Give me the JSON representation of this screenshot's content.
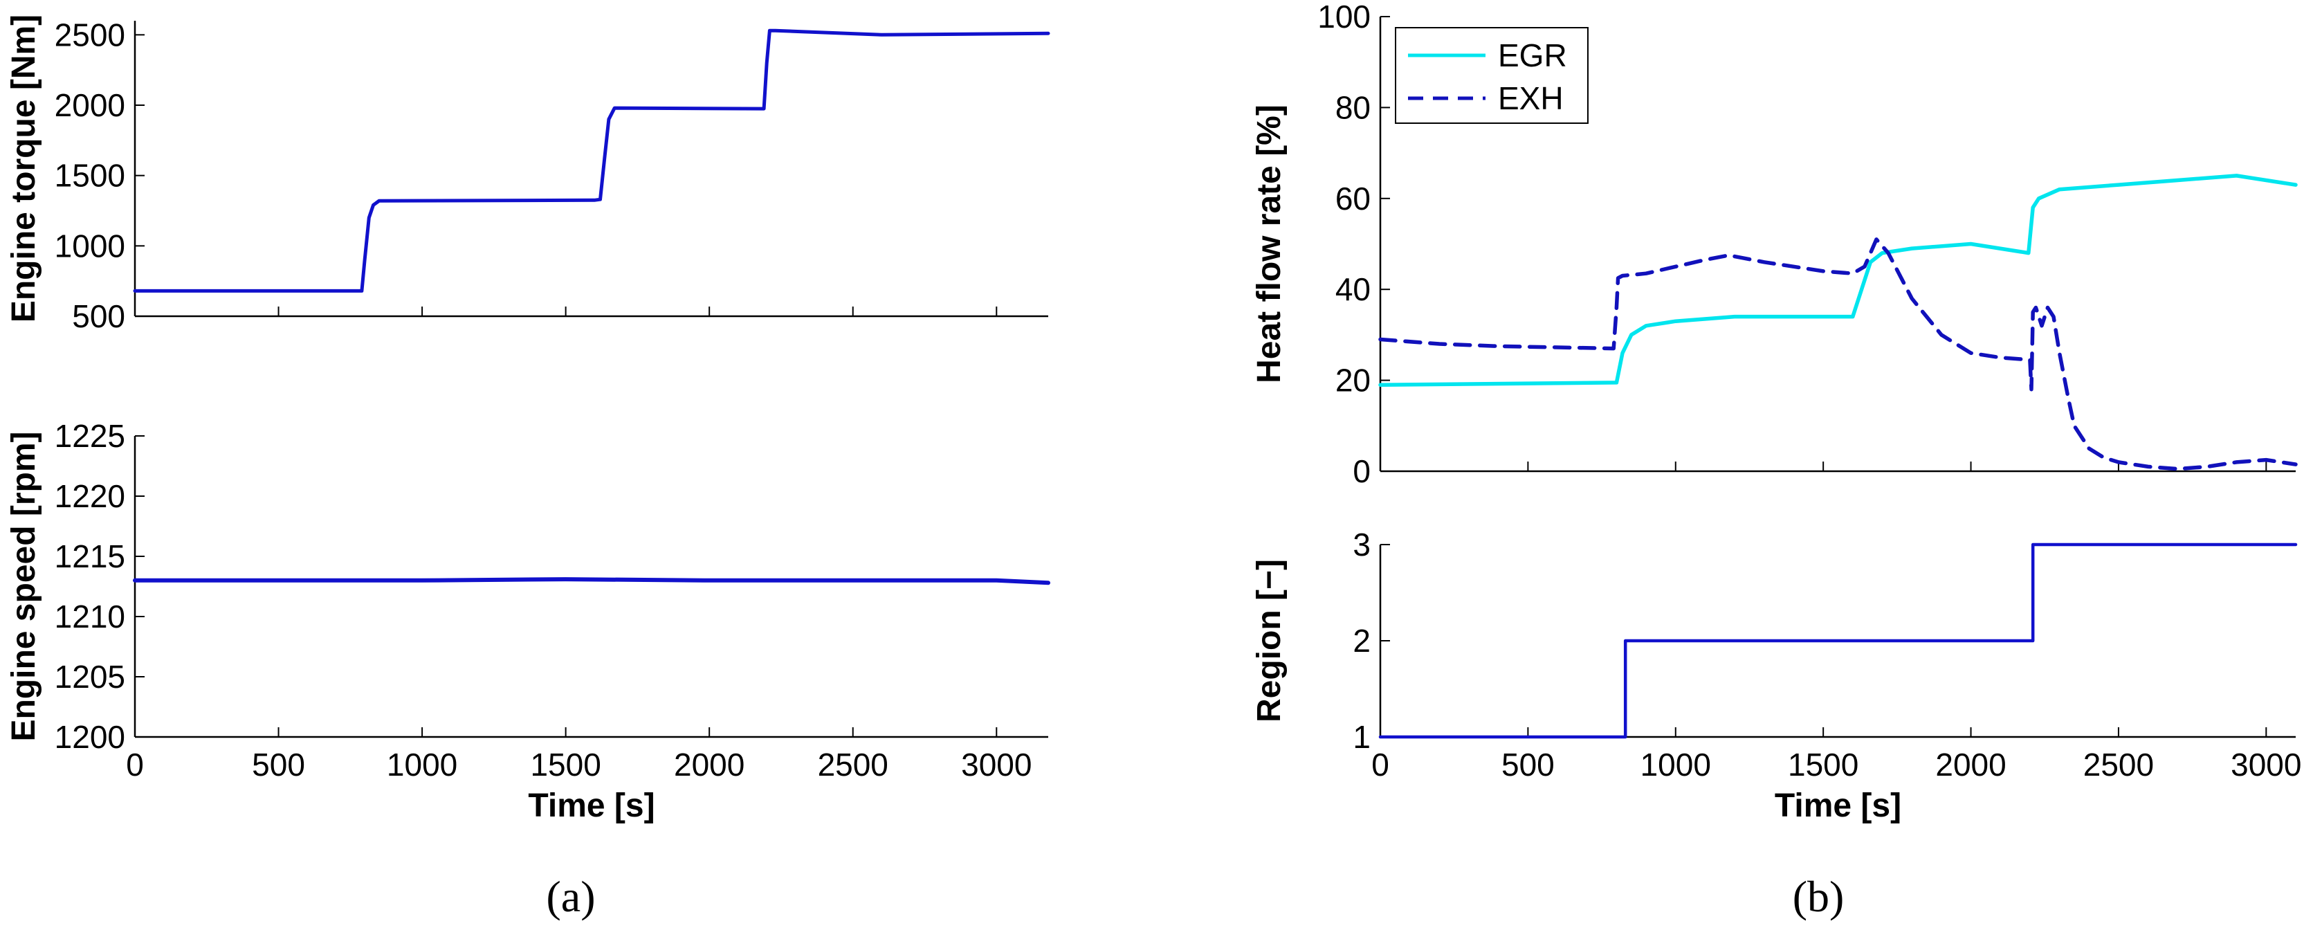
{
  "colors": {
    "torque": "#1111cc",
    "speed": "#1111cc",
    "egr": "#00e5ee",
    "exh": "#1111bb",
    "region": "#1111cc",
    "axis": "#000000"
  },
  "captions": {
    "a": "(a)",
    "b": "(b)"
  },
  "chart_data": [
    {
      "id": "torque",
      "type": "line",
      "title": "",
      "xlabel": "",
      "ylabel": "Engine torque [Nm]",
      "xlim": [
        0,
        3180
      ],
      "ylim": [
        500,
        2600
      ],
      "xticks": [
        0,
        500,
        1000,
        1500,
        2000,
        2500,
        3000
      ],
      "yticks": [
        500,
        1000,
        1500,
        2000,
        2500
      ],
      "show_xticklabels": false,
      "series": [
        {
          "x": [
            0,
            790,
            800,
            815,
            830,
            850,
            1600,
            1620,
            1635,
            1650,
            1670,
            2190,
            2200,
            2210,
            2230,
            2600,
            3180
          ],
          "y": [
            680,
            680,
            900,
            1200,
            1290,
            1320,
            1325,
            1330,
            1620,
            1900,
            1980,
            1975,
            2300,
            2530,
            2530,
            2500,
            2510
          ]
        }
      ]
    },
    {
      "id": "speed",
      "type": "line",
      "title": "",
      "xlabel": "Time [s]",
      "ylabel": "Engine speed [rpm]",
      "xlim": [
        0,
        3180
      ],
      "ylim": [
        1200,
        1225
      ],
      "xticks": [
        0,
        500,
        1000,
        1500,
        2000,
        2500,
        3000
      ],
      "yticks": [
        1200,
        1205,
        1210,
        1215,
        1220,
        1225
      ],
      "show_xticklabels": true,
      "series": [
        {
          "x": [
            0,
            500,
            1000,
            1500,
            2000,
            2500,
            3000,
            3180
          ],
          "y": [
            1213,
            1213,
            1213,
            1213.1,
            1213,
            1213,
            1213,
            1212.8
          ]
        }
      ]
    },
    {
      "id": "heatflow",
      "type": "line",
      "title": "",
      "xlabel": "",
      "ylabel": "Heat flow rate [%]",
      "xlim": [
        0,
        3100
      ],
      "ylim": [
        0,
        100
      ],
      "xticks": [
        0,
        500,
        1000,
        1500,
        2000,
        2500,
        3000
      ],
      "yticks": [
        0,
        20,
        40,
        60,
        80,
        100
      ],
      "show_xticklabels": false,
      "legend": {
        "position": "top-left",
        "entries": [
          "EGR",
          "EXH"
        ]
      },
      "series": [
        {
          "name": "EGR",
          "style": "solid",
          "x": [
            0,
            800,
            820,
            850,
            900,
            1000,
            1200,
            1400,
            1600,
            1630,
            1660,
            1700,
            1800,
            2000,
            2195,
            2210,
            2230,
            2300,
            2500,
            2700,
            2900,
            3100
          ],
          "y": [
            19,
            19.5,
            26,
            30,
            32,
            33,
            34,
            34,
            34,
            40,
            46,
            48,
            49,
            50,
            48,
            58,
            60,
            62,
            63,
            64,
            65,
            63
          ]
        },
        {
          "name": "EXH",
          "style": "dashed",
          "x": [
            0,
            200,
            400,
            790,
            800,
            805,
            820,
            900,
            1000,
            1100,
            1180,
            1300,
            1400,
            1500,
            1600,
            1640,
            1680,
            1720,
            1800,
            1900,
            2000,
            2100,
            2200,
            2205,
            2210,
            2220,
            2240,
            2260,
            2280,
            2300,
            2330,
            2350,
            2400,
            2450,
            2500,
            2600,
            2700,
            2800,
            2900,
            3000,
            3100
          ],
          "y": [
            29,
            28,
            27.5,
            27,
            36,
            42.5,
            43,
            43.5,
            45,
            46.5,
            47.5,
            46,
            45,
            44,
            43.5,
            45,
            51,
            48,
            38,
            30,
            26,
            25,
            24.5,
            18,
            35,
            36,
            32,
            36,
            34,
            26,
            16,
            10,
            5,
            3,
            2,
            1,
            0.5,
            1,
            2,
            2.5,
            1.5
          ]
        }
      ]
    },
    {
      "id": "region",
      "type": "line",
      "title": "",
      "xlabel": "Time [s]",
      "ylabel": "Region [−]",
      "xlim": [
        0,
        3100
      ],
      "ylim": [
        1,
        3
      ],
      "xticks": [
        0,
        500,
        1000,
        1500,
        2000,
        2500,
        3000
      ],
      "yticks": [
        1,
        2,
        3
      ],
      "show_xticklabels": true,
      "series": [
        {
          "x": [
            0,
            830,
            830,
            2210,
            2210,
            3100
          ],
          "y": [
            1,
            1,
            2,
            2,
            3,
            3
          ]
        }
      ]
    }
  ]
}
